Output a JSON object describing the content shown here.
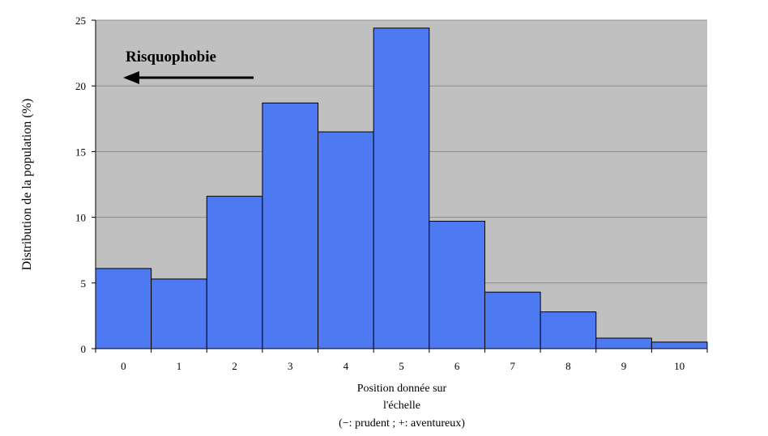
{
  "chart_data": {
    "type": "bar",
    "categories": [
      "0",
      "1",
      "2",
      "3",
      "4",
      "5",
      "6",
      "7",
      "8",
      "9",
      "10"
    ],
    "values": [
      6.1,
      5.3,
      11.6,
      18.7,
      16.5,
      24.4,
      9.7,
      4.3,
      2.8,
      0.8,
      0.5
    ],
    "ylabel": "Distribution de la population (%)",
    "xlabel_lines": [
      "Position donnée sur",
      "l'échelle",
      "(−: prudent ; +: aventureux)"
    ],
    "ylim": [
      0,
      25
    ],
    "yticks": [
      0,
      5,
      10,
      15,
      20,
      25
    ],
    "grid": true,
    "annotation": "Risquophobie",
    "colors": {
      "bar": "#4d79f2",
      "bar_edge": "#000000",
      "plot_background": "#c0c0c0",
      "gridline": "#8c8c8c"
    }
  }
}
